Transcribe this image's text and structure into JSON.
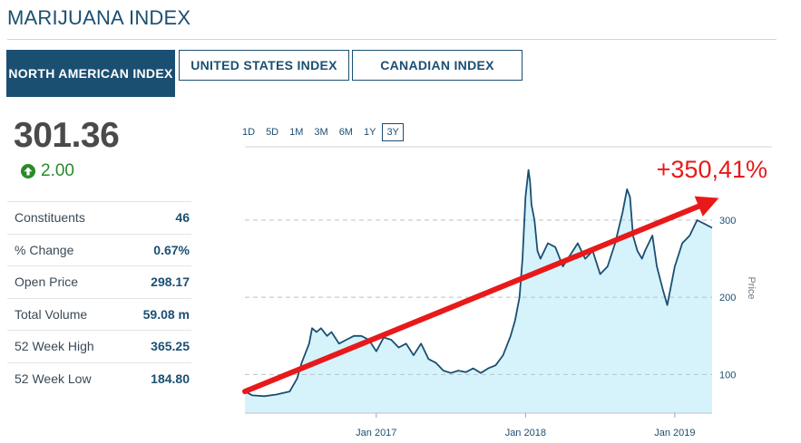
{
  "header": {
    "title": "MARIJUANA INDEX"
  },
  "tabs": [
    {
      "label": "NORTH AMERICAN INDEX",
      "active": true
    },
    {
      "label": "UNITED STATES INDEX",
      "active": false
    },
    {
      "label": "CANADIAN INDEX",
      "active": false
    }
  ],
  "quote": {
    "price": "301.36",
    "change": "2.00",
    "change_direction_icon": "arrow-up-circle-icon",
    "change_color": "#2a8a2a"
  },
  "stats": [
    {
      "label": "Constituents",
      "value": "46"
    },
    {
      "label": "% Change",
      "value": "0.67%"
    },
    {
      "label": "Open Price",
      "value": "298.17"
    },
    {
      "label": "Total Volume",
      "value": "59.08 m"
    },
    {
      "label": "52 Week High",
      "value": "365.25"
    },
    {
      "label": "52 Week Low",
      "value": "184.80"
    }
  ],
  "ranges": [
    {
      "label": "1D",
      "selected": false
    },
    {
      "label": "5D",
      "selected": false
    },
    {
      "label": "1M",
      "selected": false
    },
    {
      "label": "3M",
      "selected": false
    },
    {
      "label": "6M",
      "selected": false
    },
    {
      "label": "1Y",
      "selected": false
    },
    {
      "label": "3Y",
      "selected": true
    }
  ],
  "colors": {
    "brand": "#1b4f72",
    "line": "#1b4f72",
    "area": "#d6f3fb",
    "annotation": "#e8191a"
  },
  "chart_data": {
    "type": "area",
    "title": "",
    "ylabel": "Price",
    "xlabel": "",
    "ylim": [
      50,
      395
    ],
    "xlim": [
      2016.12,
      2019.25
    ],
    "y_ticks": [
      100,
      200,
      300
    ],
    "x_ticks": [
      {
        "label": "Jan 2017",
        "x": 2017.0
      },
      {
        "label": "Jan 2018",
        "x": 2018.0
      },
      {
        "label": "Jan 2019",
        "x": 2019.0
      }
    ],
    "grid": true,
    "series": [
      {
        "name": "North American Marijuana Index",
        "x": [
          2016.12,
          2016.17,
          2016.25,
          2016.33,
          2016.42,
          2016.47,
          2016.5,
          2016.55,
          2016.57,
          2016.6,
          2016.63,
          2016.67,
          2016.7,
          2016.75,
          2016.8,
          2016.85,
          2016.9,
          2016.95,
          2017.0,
          2017.05,
          2017.1,
          2017.15,
          2017.2,
          2017.25,
          2017.3,
          2017.35,
          2017.4,
          2017.45,
          2017.5,
          2017.55,
          2017.6,
          2017.65,
          2017.7,
          2017.75,
          2017.8,
          2017.85,
          2017.9,
          2017.93,
          2017.96,
          2017.98,
          2018.0,
          2018.02,
          2018.03,
          2018.04,
          2018.06,
          2018.08,
          2018.1,
          2018.15,
          2018.2,
          2018.25,
          2018.3,
          2018.35,
          2018.4,
          2018.45,
          2018.5,
          2018.55,
          2018.6,
          2018.65,
          2018.68,
          2018.7,
          2018.72,
          2018.75,
          2018.78,
          2018.8,
          2018.85,
          2018.88,
          2018.92,
          2018.95,
          2019.0,
          2019.05,
          2019.1,
          2019.15,
          2019.2,
          2019.25
        ],
        "values": [
          78,
          73,
          72,
          74,
          78,
          95,
          115,
          140,
          160,
          155,
          160,
          150,
          155,
          140,
          145,
          150,
          150,
          145,
          130,
          148,
          145,
          135,
          140,
          125,
          140,
          120,
          115,
          105,
          102,
          105,
          103,
          108,
          102,
          108,
          112,
          125,
          150,
          170,
          200,
          250,
          330,
          365,
          350,
          320,
          300,
          260,
          250,
          270,
          265,
          240,
          255,
          270,
          250,
          260,
          230,
          240,
          270,
          310,
          340,
          330,
          280,
          260,
          250,
          260,
          280,
          240,
          210,
          190,
          240,
          270,
          280,
          300,
          295,
          290
        ]
      }
    ],
    "annotations": [
      {
        "type": "trend-arrow",
        "label": "+350,41%",
        "from": [
          2016.12,
          78
        ],
        "to": [
          2019.25,
          325
        ]
      }
    ]
  }
}
